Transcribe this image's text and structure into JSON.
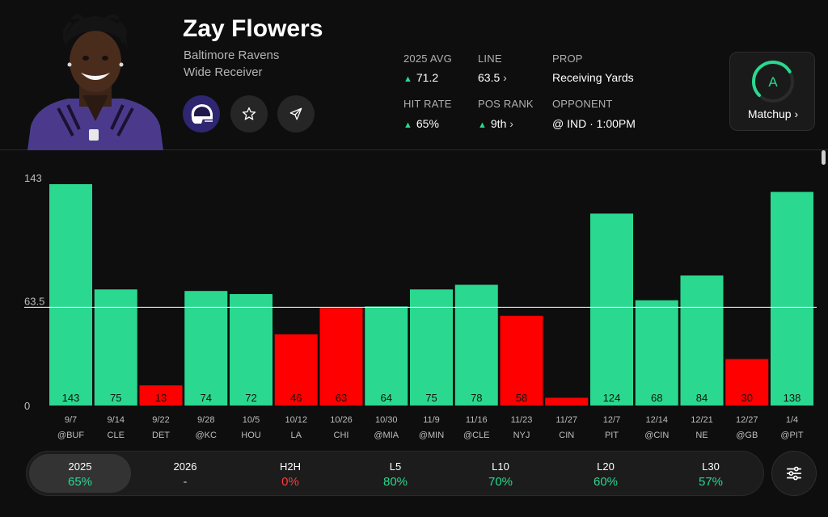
{
  "player": {
    "name": "Zay Flowers",
    "team": "Baltimore Ravens",
    "position": "Wide Receiver"
  },
  "stats": {
    "avg_label": "2025 AVG",
    "avg_value": "71.2",
    "line_label": "LINE",
    "line_value": "63.5",
    "prop_label": "PROP",
    "prop_value": "Receiving Yards",
    "hit_label": "HIT RATE",
    "hit_value": "65%",
    "rank_label": "POS RANK",
    "rank_value": "9th",
    "opp_label": "OPPONENT",
    "opp_value": "@ IND · 1:00PM"
  },
  "matchup": {
    "grade": "A",
    "label": "Matchup",
    "score": 0.72
  },
  "colors": {
    "over": "#2ad98f",
    "under": "#ff0000",
    "accent": "#2ad98f",
    "negative": "#ff3b3b"
  },
  "icons": {
    "team_logo": "ravens-helmet-icon",
    "favorite": "star-icon",
    "share": "send-icon",
    "filter": "sliders-icon"
  },
  "chart_data": {
    "type": "bar",
    "y_axis_labels": [
      "143",
      "63.5",
      "0"
    ],
    "line": 63.5,
    "ylim": [
      0,
      143
    ],
    "dates": [
      "9/7",
      "9/14",
      "9/22",
      "9/28",
      "10/5",
      "10/12",
      "10/26",
      "10/30",
      "11/9",
      "11/16",
      "11/23",
      "11/27",
      "12/7",
      "12/14",
      "12/21",
      "12/27",
      "1/4"
    ],
    "opponents": [
      "@BUF",
      "CLE",
      "DET",
      "@KC",
      "HOU",
      "LA",
      "CHI",
      "@MIA",
      "@MIN",
      "@CLE",
      "NYJ",
      "CIN",
      "PIT",
      "@CIN",
      "NE",
      "@GB",
      "@PIT"
    ],
    "values": [
      143,
      75,
      13,
      74,
      72,
      46,
      63,
      64,
      75,
      78,
      58,
      5,
      124,
      68,
      84,
      30,
      138
    ],
    "value_labels": [
      "143",
      "75",
      "13",
      "74",
      "72",
      "46",
      "63",
      "64",
      "75",
      "78",
      "58",
      "",
      "124",
      "68",
      "84",
      "30",
      "138"
    ]
  },
  "tabs": [
    {
      "label": "2025",
      "value": "65%",
      "tone": "good",
      "active": true
    },
    {
      "label": "2026",
      "value": "-",
      "tone": "neutral",
      "active": false
    },
    {
      "label": "H2H",
      "value": "0%",
      "tone": "bad",
      "active": false
    },
    {
      "label": "L5",
      "value": "80%",
      "tone": "good",
      "active": false
    },
    {
      "label": "L10",
      "value": "70%",
      "tone": "good",
      "active": false
    },
    {
      "label": "L20",
      "value": "60%",
      "tone": "good",
      "active": false
    },
    {
      "label": "L30",
      "value": "57%",
      "tone": "good",
      "active": false
    }
  ]
}
